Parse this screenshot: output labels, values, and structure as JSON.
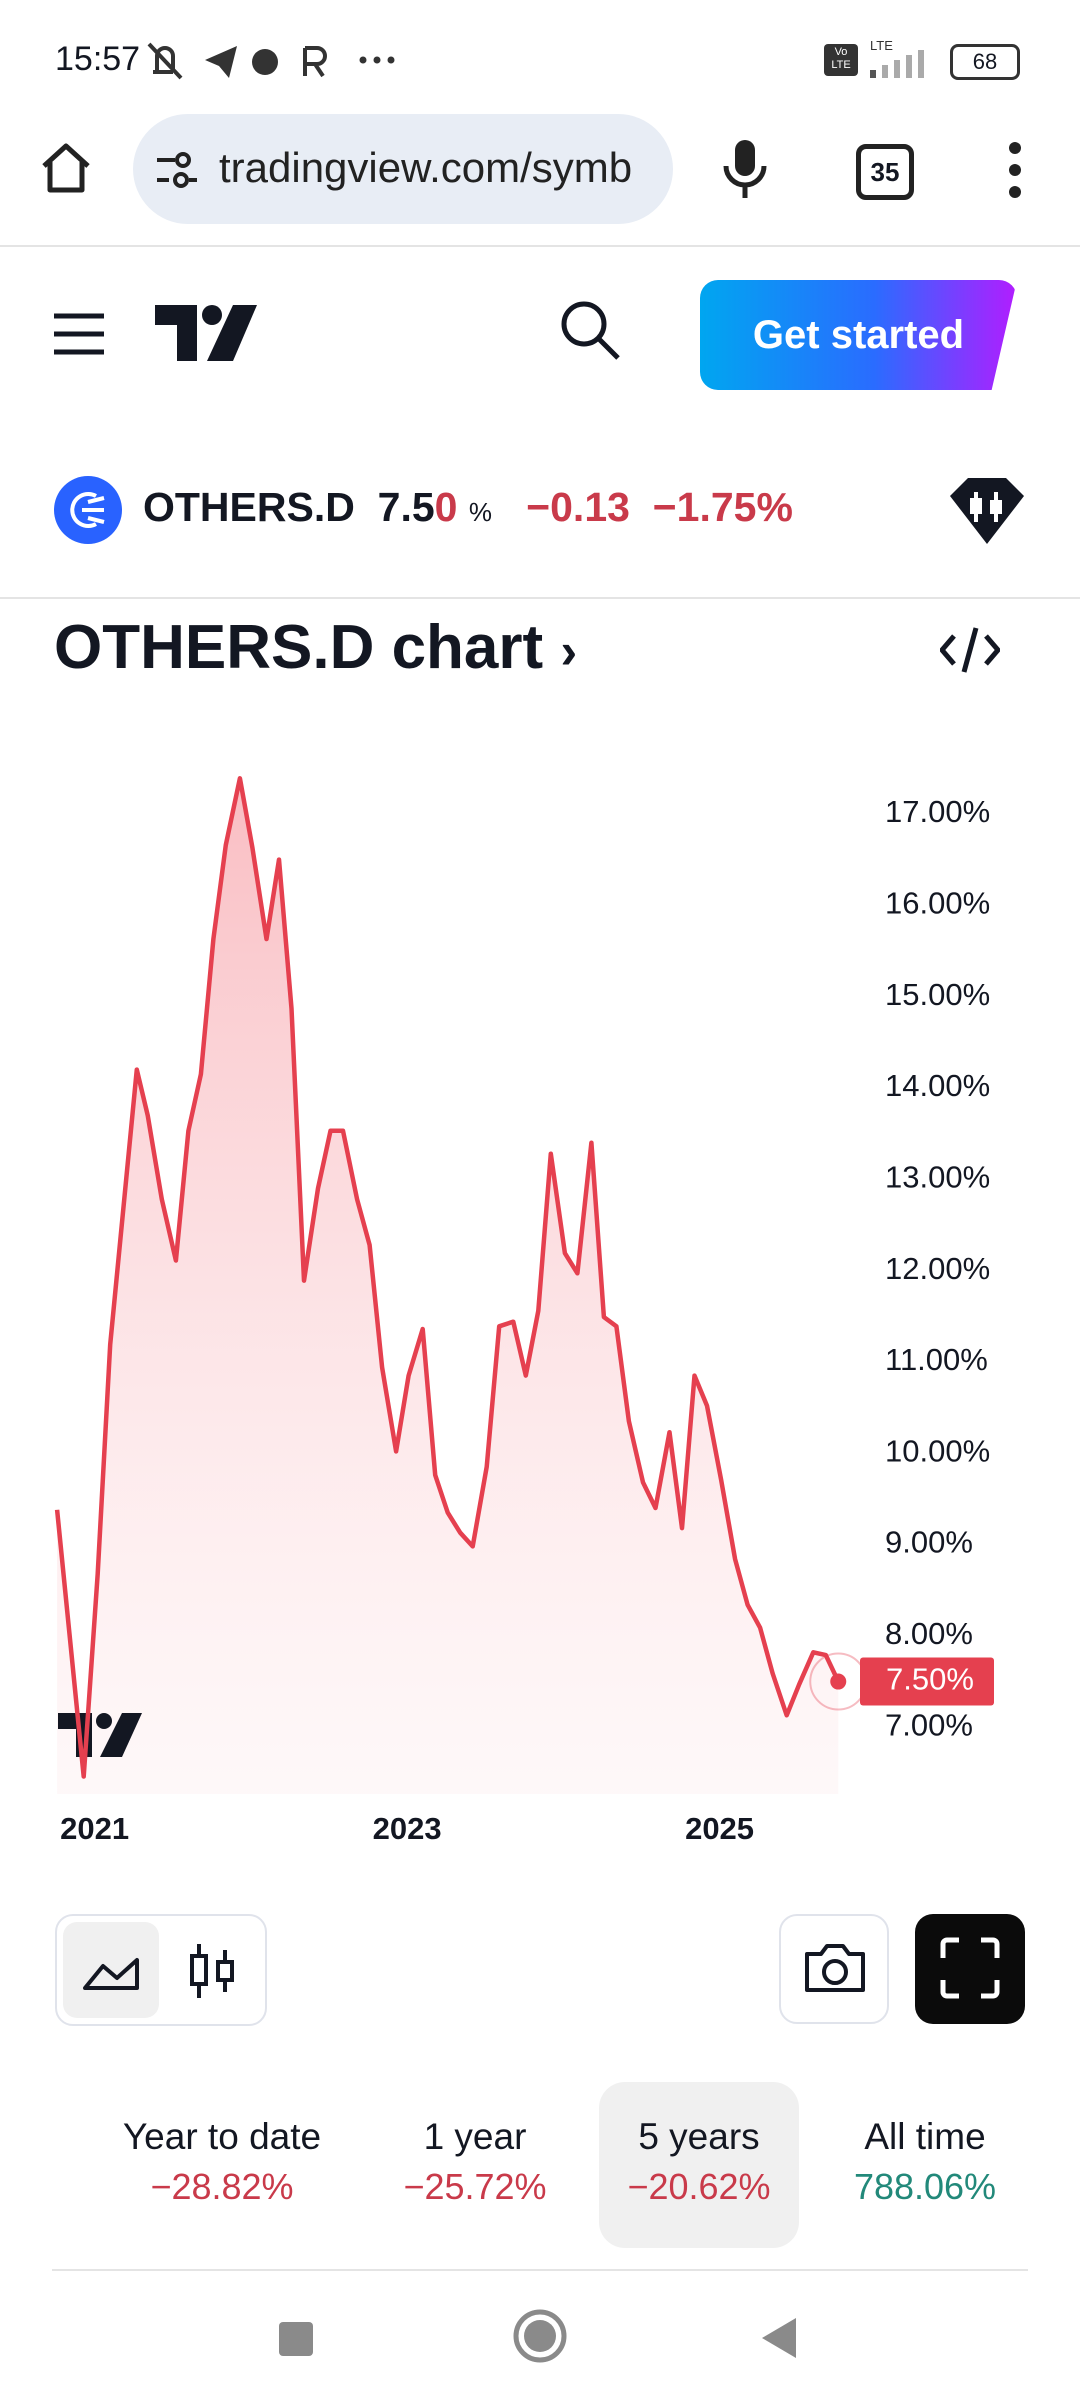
{
  "status_bar": {
    "time": "15:57",
    "vo_lte": "Vo LTE",
    "network": "LTE",
    "battery": "68"
  },
  "browser": {
    "url": "tradingview.com/symb",
    "tabs": "35"
  },
  "header": {
    "button": "Get started"
  },
  "ticker": {
    "symbol": "OTHERS.D",
    "price_main": "7.5",
    "price_last_digit": "0",
    "unit": "%",
    "change": "−0.13",
    "change_pct": "−1.75%"
  },
  "chart_title": "OTHERS.D chart",
  "chart_data": {
    "type": "line",
    "color": "#e5404f",
    "x": [
      2020.75,
      2020.92,
      2021.01,
      2021.09,
      2021.26,
      2021.33,
      2021.42,
      2021.51,
      2021.59,
      2021.67,
      2021.75,
      2021.83,
      2021.92,
      2022.0,
      2022.09,
      2022.17,
      2022.25,
      2022.33,
      2022.42,
      2022.5,
      2022.58,
      2022.67,
      2022.75,
      2022.83,
      2022.92,
      2023.0,
      2023.09,
      2023.17,
      2023.25,
      2023.33,
      2023.41,
      2023.5,
      2023.58,
      2023.67,
      2023.75,
      2023.83,
      2023.91,
      2024.0,
      2024.08,
      2024.17,
      2024.25,
      2024.33,
      2024.41,
      2024.5,
      2024.58,
      2024.67,
      2024.75,
      2024.83,
      2024.91,
      2025.0,
      2025.09,
      2025.17,
      2025.25,
      2025.33,
      2025.42,
      2025.5,
      2025.59,
      2025.67,
      2025.75
    ],
    "values": [
      9.38,
      6.46,
      8.68,
      11.19,
      14.2,
      13.7,
      12.78,
      12.11,
      13.53,
      14.15,
      15.63,
      16.66,
      17.39,
      16.63,
      15.63,
      16.5,
      14.87,
      11.89,
      12.9,
      13.53,
      13.53,
      12.78,
      12.28,
      10.94,
      10.02,
      10.85,
      11.36,
      9.76,
      9.35,
      9.13,
      8.98,
      9.85,
      11.39,
      11.44,
      10.85,
      11.56,
      13.28,
      12.19,
      11.97,
      13.4,
      11.49,
      11.39,
      10.35,
      9.68,
      9.4,
      10.23,
      9.18,
      10.85,
      10.52,
      9.71,
      8.84,
      8.34,
      8.09,
      7.59,
      7.13,
      7.47,
      7.82,
      7.79,
      7.5
    ],
    "xlim": [
      2020.73,
      2025.87
    ],
    "xticks": [
      2021,
      2023,
      2025
    ],
    "ylim": [
      6.4,
      17.7
    ],
    "yticks": [
      {
        "value": 7,
        "label": "7.00%"
      },
      {
        "value": 8,
        "label": "8.00%"
      },
      {
        "value": 9,
        "label": "9.00%"
      },
      {
        "value": 10,
        "label": "10.00%"
      },
      {
        "value": 11,
        "label": "11.00%"
      },
      {
        "value": 12,
        "label": "12.00%"
      },
      {
        "value": 13,
        "label": "13.00%"
      },
      {
        "value": 14,
        "label": "14.00%"
      },
      {
        "value": 15,
        "label": "15.00%"
      },
      {
        "value": 16,
        "label": "16.00%"
      },
      {
        "value": 17,
        "label": "17.00%"
      }
    ],
    "last_label": {
      "value": 7.5,
      "label": "7.50%"
    }
  },
  "periods": [
    {
      "label": "Year to date",
      "change": "−28.82%"
    },
    {
      "label": "1 year",
      "change": "−25.72%"
    },
    {
      "label": "5 years",
      "change": "−20.62%"
    },
    {
      "label": "All time",
      "change": "788.06%"
    }
  ]
}
